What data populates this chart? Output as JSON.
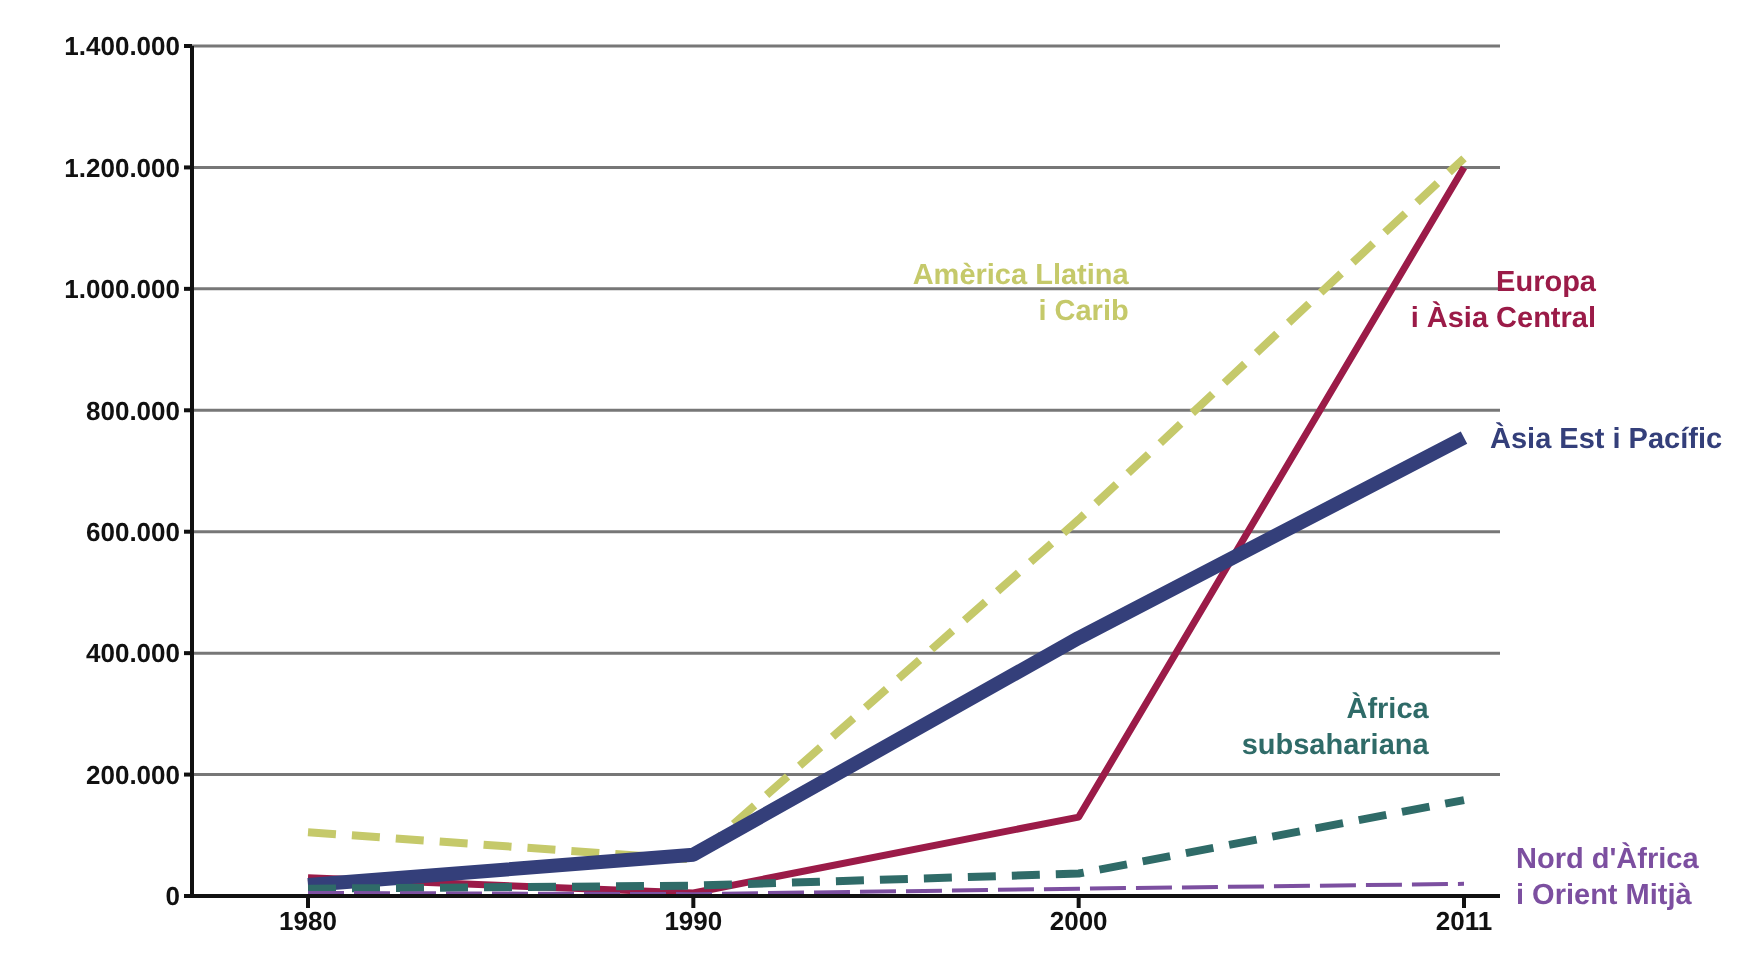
{
  "chart_data": {
    "type": "line",
    "categories": [
      "1980",
      "1990",
      "2000",
      "2011"
    ],
    "series": [
      {
        "name": "Amèrica Llatina i Carib",
        "color": "#c5c96a",
        "line_style": "dashed",
        "values": [
          105000,
          60000,
          620000,
          1215000
        ]
      },
      {
        "name": "Europa i Àsia Central",
        "color": "#9b1b48",
        "line_style": "solid",
        "values": [
          30000,
          5000,
          130000,
          1200000
        ]
      },
      {
        "name": "Àsia Est i Pacífic",
        "color": "#343f7a",
        "line_style": "solid",
        "values": [
          18000,
          68000,
          425000,
          755000
        ]
      },
      {
        "name": "Àfrica subsahariana",
        "color": "#2f6b68",
        "line_style": "dashed",
        "values": [
          12000,
          17000,
          37000,
          158000
        ]
      },
      {
        "name": "Nord d'Àfrica i Orient Mitjà",
        "color": "#7c4fa0",
        "line_style": "dashed",
        "values": [
          5000,
          3000,
          12000,
          20000
        ]
      }
    ],
    "ylim": [
      0,
      1400000
    ],
    "yticks": [
      {
        "value": 0,
        "label": "0"
      },
      {
        "value": 200000,
        "label": "200.000"
      },
      {
        "value": 400000,
        "label": "400.000"
      },
      {
        "value": 600000,
        "label": "600.000"
      },
      {
        "value": 800000,
        "label": "800.000"
      },
      {
        "value": 1000000,
        "label": "1.000.000"
      },
      {
        "value": 1200000,
        "label": "1.200.000"
      },
      {
        "value": 1400000,
        "label": "1.400.000"
      }
    ],
    "grid": "y",
    "legend": false,
    "marker": "none"
  }
}
